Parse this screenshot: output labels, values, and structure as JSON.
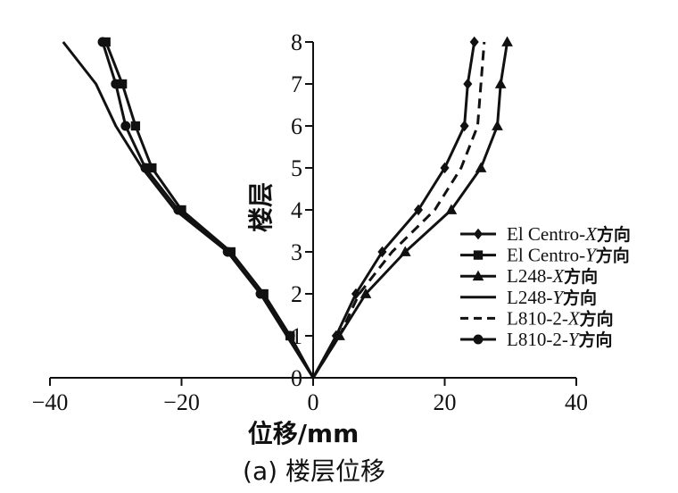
{
  "chart_data": {
    "type": "line",
    "caption": "(a) 楼层位移",
    "xlabel": "位移/mm",
    "ylabel": "楼层",
    "xlim": [
      -40,
      40
    ],
    "ylim": [
      0,
      8
    ],
    "xticks": [
      "−40",
      "−20",
      "0",
      "20",
      "40"
    ],
    "yticks": [
      "0",
      "1",
      "2",
      "3",
      "4",
      "5",
      "6",
      "7",
      "8"
    ],
    "floors": [
      0,
      1,
      2,
      3,
      4,
      5,
      6,
      7,
      8
    ],
    "legend_position": "right",
    "series": [
      {
        "name": "El Centro-X方向",
        "name_parts": [
          "El Centro-",
          "X",
          "方向"
        ],
        "marker": "diamond",
        "dash": "solid",
        "x": [
          0,
          3.5,
          6.5,
          10.5,
          16,
          20,
          23,
          23.5,
          24.5
        ]
      },
      {
        "name": "El Centro-Y方向",
        "name_parts": [
          "El Centro-",
          "Y",
          "方向"
        ],
        "marker": "square",
        "dash": "solid",
        "x": [
          0,
          -3.5,
          -7.5,
          -12.5,
          -20,
          -24.5,
          -27,
          -29,
          -31.5
        ]
      },
      {
        "name": "L248-X方向",
        "name_parts": [
          "L248-",
          "X",
          "方向"
        ],
        "marker": "triangle",
        "dash": "solid",
        "x": [
          0,
          4,
          8,
          14,
          21,
          25.5,
          28,
          28.5,
          29.5
        ]
      },
      {
        "name": "L248-Y方向",
        "name_parts": [
          "L248-",
          "Y",
          "方向"
        ],
        "marker": "none",
        "dash": "solid",
        "x": [
          0,
          -4,
          -8,
          -13,
          -21,
          -26,
          -30,
          -33,
          -38
        ]
      },
      {
        "name": "L810-2-X方向",
        "name_parts": [
          "L810-2-",
          "X",
          "方向"
        ],
        "marker": "none",
        "dash": "dashed",
        "x": [
          0,
          4,
          7,
          12,
          18.5,
          22.5,
          25,
          25.5,
          26
        ]
      },
      {
        "name": "L810-2-Y方向",
        "name_parts": [
          "L810-2-",
          "Y",
          "方向"
        ],
        "marker": "circle",
        "dash": "solid",
        "x": [
          0,
          -3.5,
          -8,
          -13,
          -20.5,
          -25.5,
          -28.5,
          -30,
          -32
        ]
      }
    ]
  }
}
